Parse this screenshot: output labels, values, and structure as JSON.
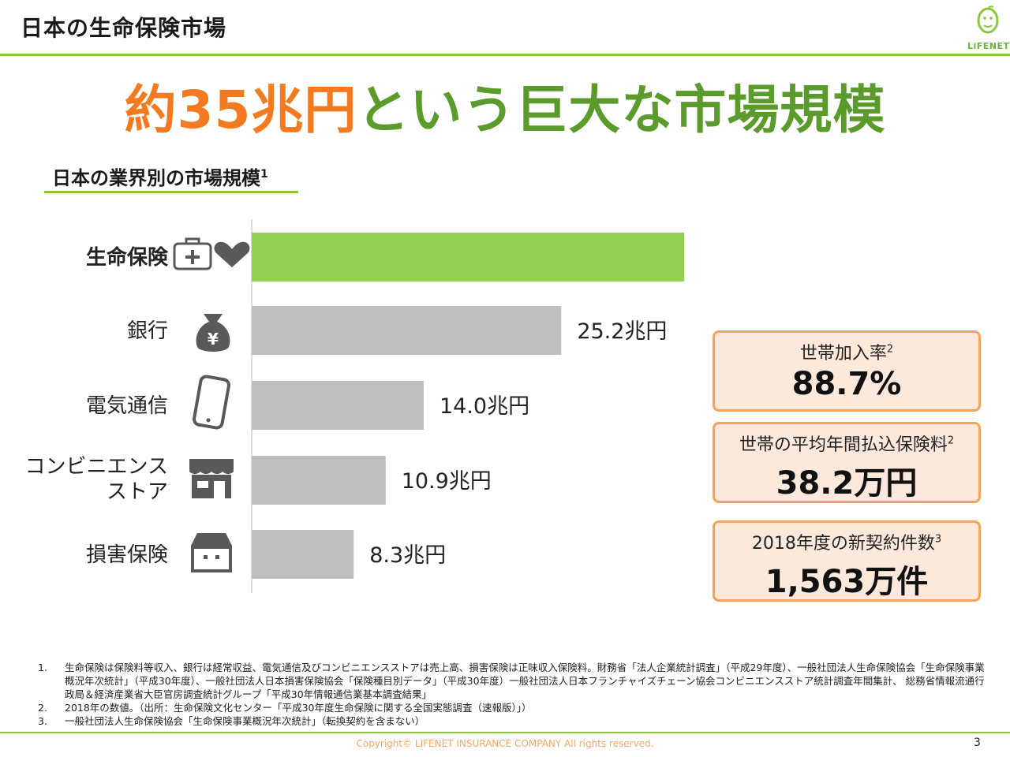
{
  "header": {
    "title": "日本の生命保険市場",
    "logo_text": "LiFENET"
  },
  "headline": {
    "part_orange": "約35兆円",
    "part_green": "という巨大な市場規模"
  },
  "subtitle": {
    "text": "日本の業界別の市場規模",
    "sup": "1"
  },
  "chart_data": {
    "type": "bar",
    "orientation": "horizontal",
    "categories": [
      "生命保険",
      "銀行",
      "電気通信",
      "コンビニエンスストア",
      "損害保険"
    ],
    "category_lines": [
      [
        "生命保険"
      ],
      [
        "銀行"
      ],
      [
        "電気通信"
      ],
      [
        "コンビニエンス",
        "ストア"
      ],
      [
        "損害保険"
      ]
    ],
    "icons": [
      "first-aid-kit-heart-icon",
      "money-bag-yen-icon",
      "smartphone-icon",
      "storefront-icon",
      "house-icon"
    ],
    "values": [
      35.2,
      25.2,
      14.0,
      10.9,
      8.3
    ],
    "value_labels": [
      "35.2",
      "25.2兆円",
      "14.0兆円",
      "10.9兆円",
      "8.3兆円"
    ],
    "highlight_unit": "兆円",
    "unit": "兆円",
    "highlight_index": 0,
    "colors": {
      "highlight": "#92d050",
      "default": "#bfbfbf",
      "highlight_label": "#f47a20",
      "axis": "#d0d0d0"
    }
  },
  "stats": [
    {
      "label": "世帯加入率",
      "sup": "2",
      "value": "88.7%"
    },
    {
      "label": "世帯の平均年間払込保険料",
      "sup": "2",
      "value": "38.2万円"
    },
    {
      "label": "2018年度の新契約件数",
      "sup": "3",
      "value": "1,563万件"
    }
  ],
  "footnotes": [
    {
      "num": "1.",
      "text": "生命保険は保険料等収入、銀行は経常収益、電気通信及びコンビニエンスストアは売上高、損害保険は正味収入保険料。財務省「法人企業統計調査」（平成29年度）、一般社団法人生命保険協会「生命保険事業概況年次統計」（平成30年度）、一般社団法人日本損害保険協会「保険種目別データ」（平成30年度）一般社団法人日本フランチャイズチェーン協会コンビニエンスストア統計調査年間集計、 総務省情報流通行政局＆経済産業省大臣官房調査統計グループ「平成30年情報通信業基本調査結果」"
    },
    {
      "num": "2.",
      "text": "2018年の数値。（出所：生命保険文化センター「平成30年度生命保険に関する全国実態調査（速報版）」）"
    },
    {
      "num": "3.",
      "text": "一般社団法人生命保険協会「生命保険事業概況年次統計」（転換契約を含まない）"
    }
  ],
  "footer": {
    "copyright": "Copyright© LIFENET INSURANCE COMPANY All rights reserved.",
    "page": "3"
  }
}
